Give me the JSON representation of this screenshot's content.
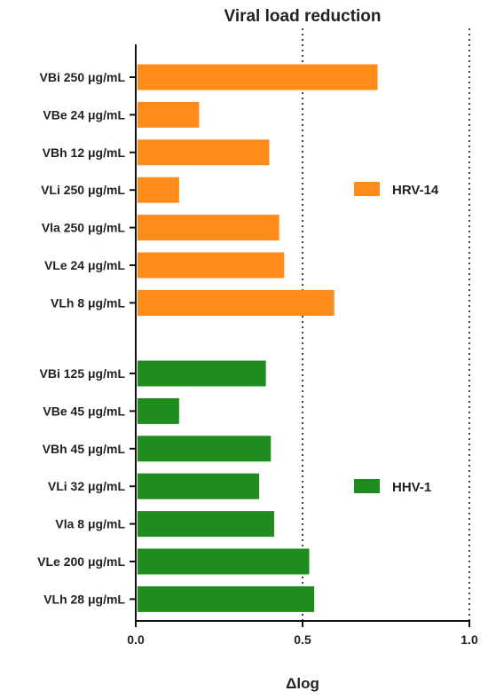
{
  "chart_data": {
    "type": "bar",
    "orientation": "horizontal",
    "title": "Viral load reduction",
    "xlabel": "Δlog",
    "xlim": [
      0,
      1.0
    ],
    "xticks": [
      "0.0",
      "0.5",
      "1.0"
    ],
    "reference_lines": [
      0.5,
      1.0
    ],
    "grid": false,
    "series": [
      {
        "name": "HRV-14",
        "color": "#FF8C1A",
        "categories": [
          "VBi 250 μg/mL",
          "VBe 24 μg/mL",
          "VBh 12 μg/mL",
          "VLi 250 μg/mL",
          "Vla 250 μg/mL",
          "VLe 24  μg/mL",
          "VLh 8 μg/mL"
        ],
        "values": [
          0.725,
          0.19,
          0.4,
          0.13,
          0.43,
          0.445,
          0.595
        ]
      },
      {
        "name": "HHV-1",
        "color": "#1E8C1E",
        "categories": [
          "VBi 125 μg/mL",
          "VBe 45 μg/mL",
          "VBh 45 μg/mL",
          "VLi 32 μg/mL",
          "Vla 8 μg/mL",
          "VLe 200 μg/mL",
          "VLh 28 μg/mL"
        ],
        "values": [
          0.39,
          0.13,
          0.405,
          0.37,
          0.415,
          0.52,
          0.535
        ]
      }
    ]
  }
}
